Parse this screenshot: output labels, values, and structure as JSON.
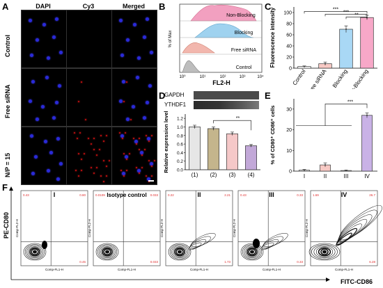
{
  "panel_labels": {
    "A": "A",
    "B": "B",
    "C": "C",
    "D": "D",
    "E": "E",
    "F": "F"
  },
  "panelA": {
    "col_headers": [
      "DAPI",
      "Cy3",
      "Merged"
    ],
    "row_labels": [
      "Control",
      "Free siRNA",
      "N/P = 15"
    ]
  },
  "panelB": {
    "ylabel": "% of Max",
    "xlabel": "FL2-H",
    "tick_labels": [
      "10⁰",
      "10¹",
      "10²",
      "10³",
      "10⁴"
    ],
    "series": [
      {
        "name": "Non-Blocking",
        "color": "#f2a0c0"
      },
      {
        "name": "Blocking",
        "color": "#9fd2ef"
      },
      {
        "name": "Free siRNA",
        "color": "#f2b7ae"
      },
      {
        "name": "Control",
        "color": "#bdbdbd"
      }
    ]
  },
  "chart_data": [
    {
      "type": "bar",
      "panel": "C",
      "categories": [
        "Control",
        "Free siRNA",
        "Blocking",
        "Non-Blocking"
      ],
      "values": [
        3,
        8,
        70,
        91
      ],
      "errors": [
        1,
        3,
        6,
        4
      ],
      "colors": [
        "#ffffff",
        "#f7c9c4",
        "#a9d8f5",
        "#f7a8c8"
      ],
      "ylabel": "Fluorescence intensity",
      "ylim": [
        0,
        110
      ],
      "yticks": [
        0,
        20,
        40,
        60,
        80,
        100
      ],
      "significance": [
        "***",
        "***",
        "**"
      ]
    },
    {
      "type": "bar",
      "panel": "D",
      "categories": [
        "(1)",
        "(2)",
        "(3)",
        "(4)"
      ],
      "values": [
        1.0,
        0.96,
        0.84,
        0.56
      ],
      "errors": [
        0.04,
        0.04,
        0.04,
        0.03
      ],
      "colors": [
        "#e6e6e6",
        "#c4b58c",
        "#f5c8c8",
        "#c2a8d8"
      ],
      "ylabel": "Relative expression level",
      "ylim": [
        0,
        1.3
      ],
      "yticks": [
        0.0,
        0.2,
        0.4,
        0.6,
        0.8,
        1.0,
        1.2
      ],
      "significance": [
        "**"
      ],
      "blot_labels": [
        "GAPDH",
        "YTHDF1"
      ]
    },
    {
      "type": "bar",
      "panel": "E",
      "categories": [
        "I",
        "II",
        "III",
        "IV"
      ],
      "values": [
        0.5,
        3,
        0.3,
        27
      ],
      "errors": [
        0.3,
        1,
        0.2,
        1.2
      ],
      "colors": [
        "#ffffff",
        "#f7c9c4",
        "#ffffff",
        "#c9b2e6"
      ],
      "ylabel": "% of CD80⁺ CD86⁺ cells",
      "ylim": [
        0,
        35
      ],
      "yticks": [
        0,
        10,
        20,
        30
      ],
      "significance": [
        "***"
      ]
    }
  ],
  "panelF": {
    "ylabel": "PE-CD80",
    "xlabel": "FITC-CD86",
    "plots": [
      {
        "title": "I",
        "q": [
          "0.43",
          "0.80",
          "0.45"
        ]
      },
      {
        "title": "Isotype control",
        "q": [
          "0.0109",
          "0.033",
          "0.033"
        ]
      },
      {
        "title": "II",
        "q": [
          "0.22",
          "2.21",
          "1.73"
        ]
      },
      {
        "title": "III",
        "q": [
          "0.43",
          "0.33",
          "0.33"
        ]
      },
      {
        "title": "IV",
        "q": [
          "1.69",
          "26.7",
          "6.28"
        ]
      }
    ],
    "axis_y": "Comp-FL2-H",
    "axis_x": "Comp-FL1-H"
  }
}
